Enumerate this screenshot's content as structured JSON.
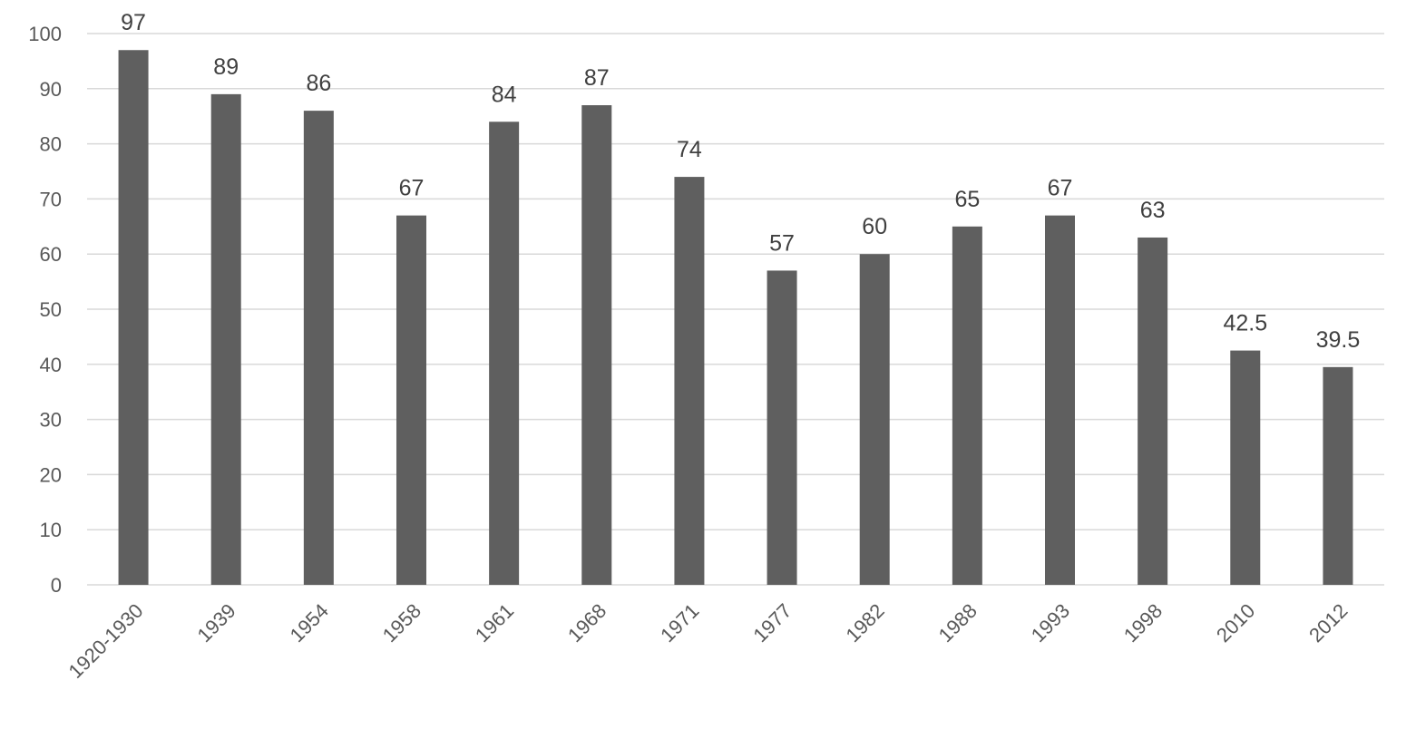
{
  "chart_data": {
    "type": "bar",
    "title": "",
    "xlabel": "",
    "ylabel": "",
    "categories": [
      "1920-1930",
      "1939",
      "1954",
      "1958",
      "1961",
      "1968",
      "1971",
      "1977",
      "1982",
      "1988",
      "1993",
      "1998",
      "2010",
      "2012"
    ],
    "values": [
      97,
      89,
      86,
      67,
      84,
      87,
      74,
      57,
      60,
      65,
      67,
      63,
      42.5,
      39.5
    ],
    "value_labels": [
      "97",
      "89",
      "86",
      "67",
      "84",
      "87",
      "74",
      "57",
      "60",
      "65",
      "67",
      "63",
      "42.5",
      "39.5"
    ],
    "ylim": [
      0,
      100
    ],
    "yticks": [
      0,
      10,
      20,
      30,
      40,
      50,
      60,
      70,
      80,
      90,
      100
    ],
    "grid": true,
    "legend": "none",
    "colors": {
      "bar": "#5f5f5f",
      "grid": "#d9d9d9",
      "tick_text": "#595959",
      "data_label_text": "#404040"
    }
  }
}
